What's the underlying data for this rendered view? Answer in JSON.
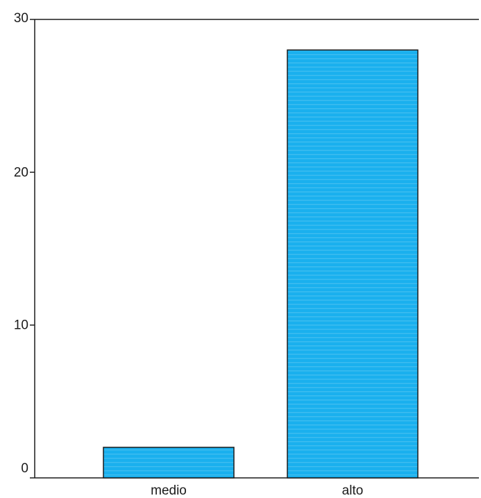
{
  "chart_data": {
    "type": "bar",
    "categories": [
      "medio",
      "alto"
    ],
    "values": [
      2,
      28
    ],
    "ylim": [
      0,
      30
    ],
    "yticks": [
      0,
      10,
      20,
      30
    ],
    "grid": false,
    "bar_color": "#1ab0ee",
    "bar_edge_color": "#1a1a1a"
  }
}
